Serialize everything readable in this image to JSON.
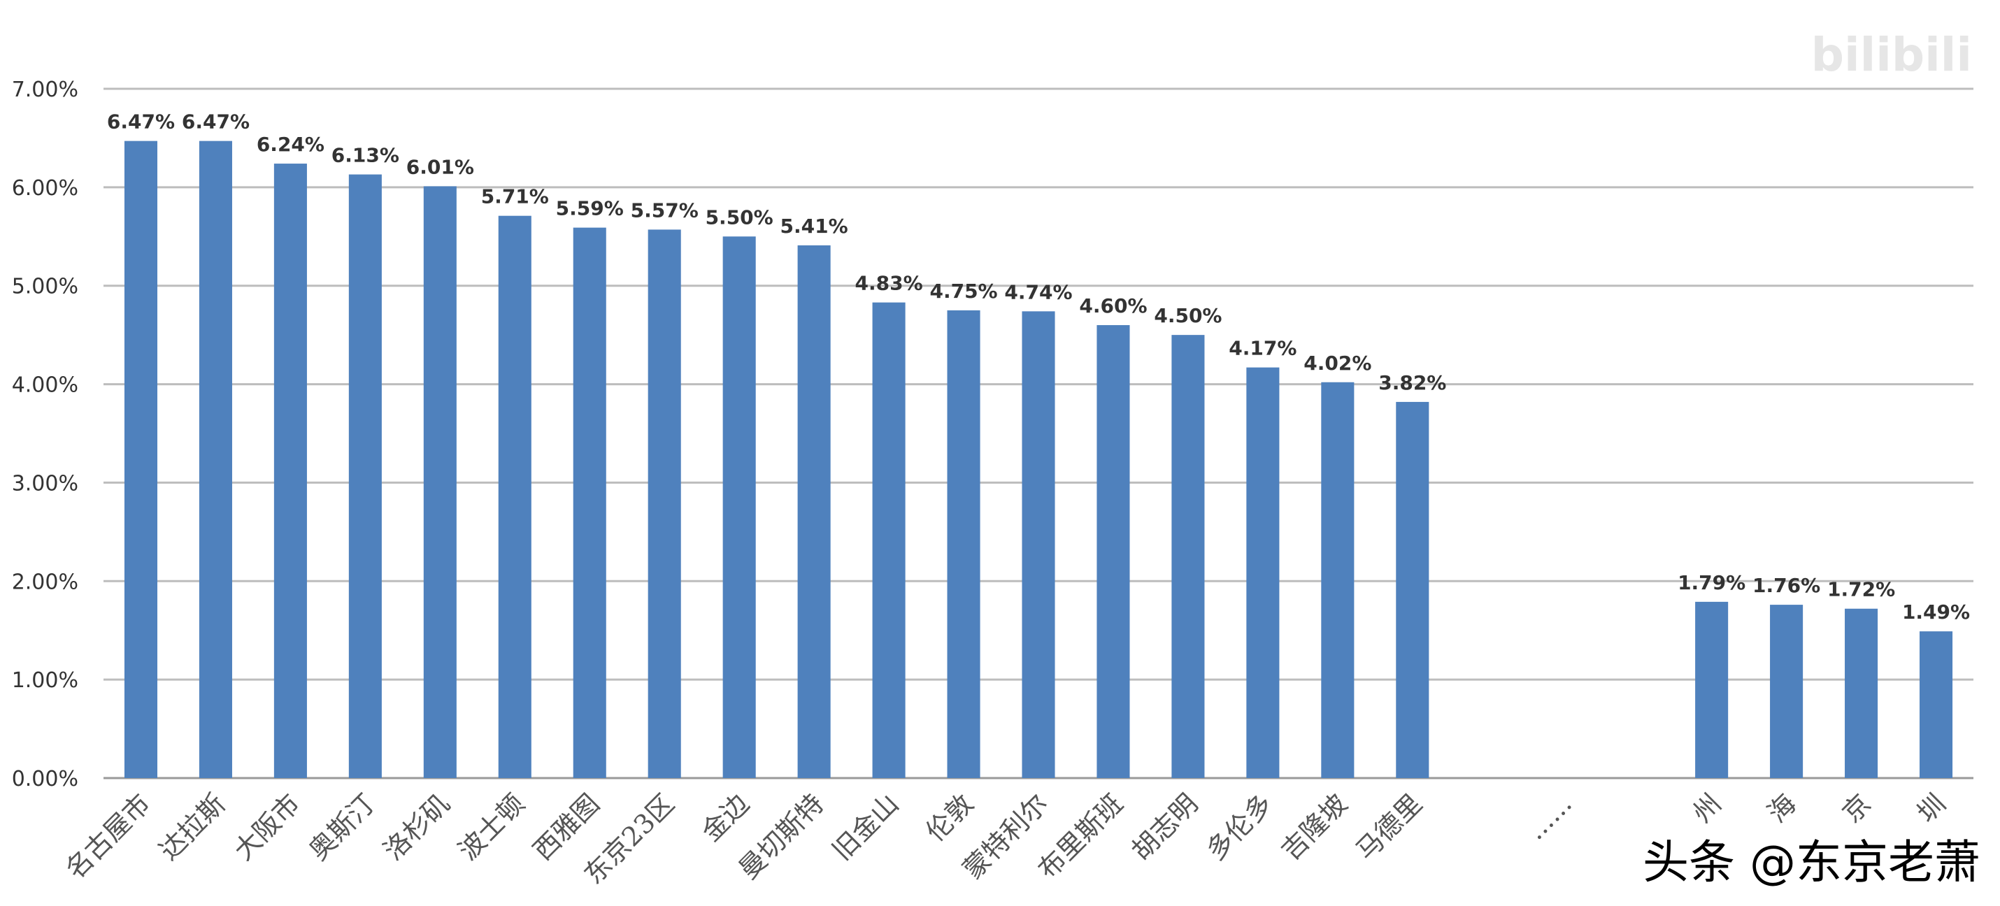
{
  "chart_data": {
    "type": "bar",
    "categories": [
      "名古屋市",
      "达拉斯",
      "大阪市",
      "奥斯汀",
      "洛杉矶",
      "波士顿",
      "西雅图",
      "东京23区",
      "金边",
      "曼切斯特",
      "旧金山",
      "伦敦",
      "蒙特利尔",
      "布里斯班",
      "胡志明",
      "多伦多",
      "吉隆坡",
      "马德里",
      "",
      "......",
      "",
      "州",
      "海",
      "京",
      "圳"
    ],
    "values": [
      6.47,
      6.47,
      6.24,
      6.13,
      6.01,
      5.71,
      5.59,
      5.57,
      5.5,
      5.41,
      4.83,
      4.75,
      4.74,
      4.6,
      4.5,
      4.17,
      4.02,
      3.82,
      null,
      null,
      null,
      1.79,
      1.76,
      1.72,
      1.49
    ],
    "data_labels": [
      "6.47%",
      "6.47%",
      "6.24%",
      "6.13%",
      "6.01%",
      "5.71%",
      "5.59%",
      "5.57%",
      "5.50%",
      "5.41%",
      "4.83%",
      "4.75%",
      "4.74%",
      "4.60%",
      "4.50%",
      "4.17%",
      "4.02%",
      "3.82%",
      "",
      "",
      "",
      "1.79%",
      "1.76%",
      "1.72%",
      "1.49%"
    ],
    "ylim": [
      0,
      7
    ],
    "yticks": [
      "0.00%",
      "1.00%",
      "2.00%",
      "3.00%",
      "4.00%",
      "5.00%",
      "6.00%",
      "7.00%"
    ],
    "ytick_values": [
      0,
      1,
      2,
      3,
      4,
      5,
      6,
      7
    ],
    "grid": true,
    "bar_color": "#4f81bd",
    "title": "",
    "xlabel": "",
    "ylabel": ""
  },
  "watermark": "头条 @东京老萧",
  "logo": "bilibili"
}
